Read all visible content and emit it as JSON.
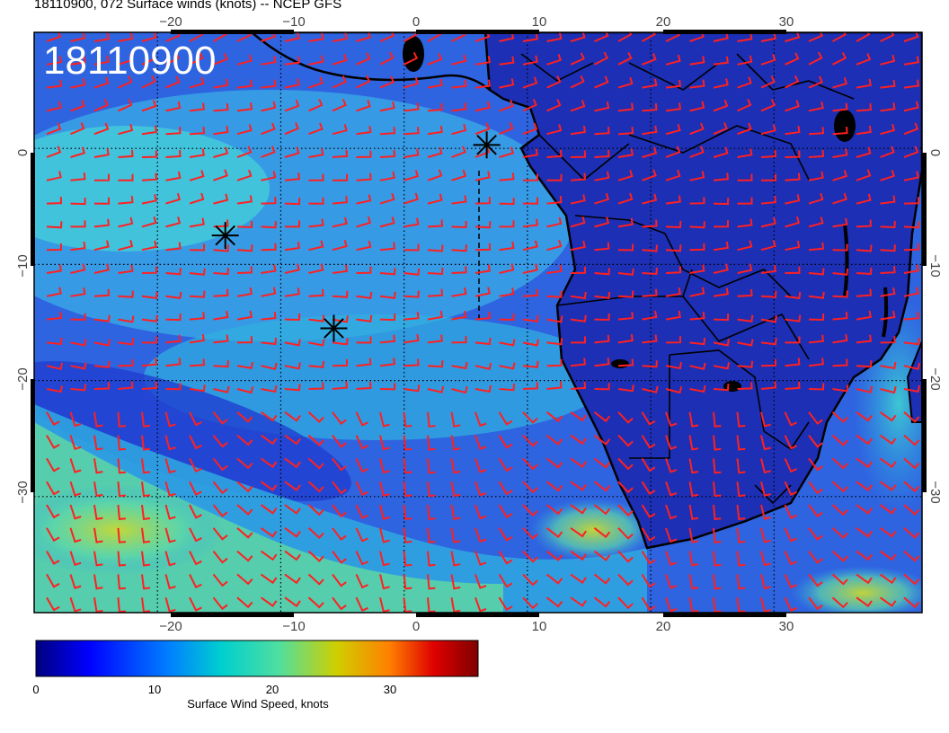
{
  "title": "18110900, 072 Surface winds (knots) -- NCEP GFS",
  "stamp": "18110900",
  "map": {
    "lon_range": [
      -30,
      42
    ],
    "lat_range": [
      -40,
      10
    ],
    "lon_ticks": [
      "−20",
      "−10",
      "0",
      "10",
      "20",
      "30"
    ],
    "lat_ticks": [
      "0",
      "−10",
      "−20",
      "−30"
    ],
    "markers": [
      {
        "name": "marker-star-1",
        "lon": -14.5,
        "lat": -7.5
      },
      {
        "name": "marker-star-2",
        "lon": -5.7,
        "lat": -15.5
      },
      {
        "name": "marker-star-3",
        "lon": 6.7,
        "lat": 0.3
      }
    ],
    "barb_color": "#ff2020",
    "ocean_color": "#2a4fd8",
    "land_color": "#1a2fb0"
  },
  "colorbar": {
    "label": "Surface Wind Speed, knots",
    "ticks": [
      "0",
      "10",
      "20",
      "30"
    ],
    "range": [
      0,
      36
    ],
    "colors": [
      "#00007f",
      "#0000ff",
      "#007fff",
      "#00cfcf",
      "#4fdf9f",
      "#cfcf00",
      "#ff7f00",
      "#df0000",
      "#7f0000"
    ]
  }
}
